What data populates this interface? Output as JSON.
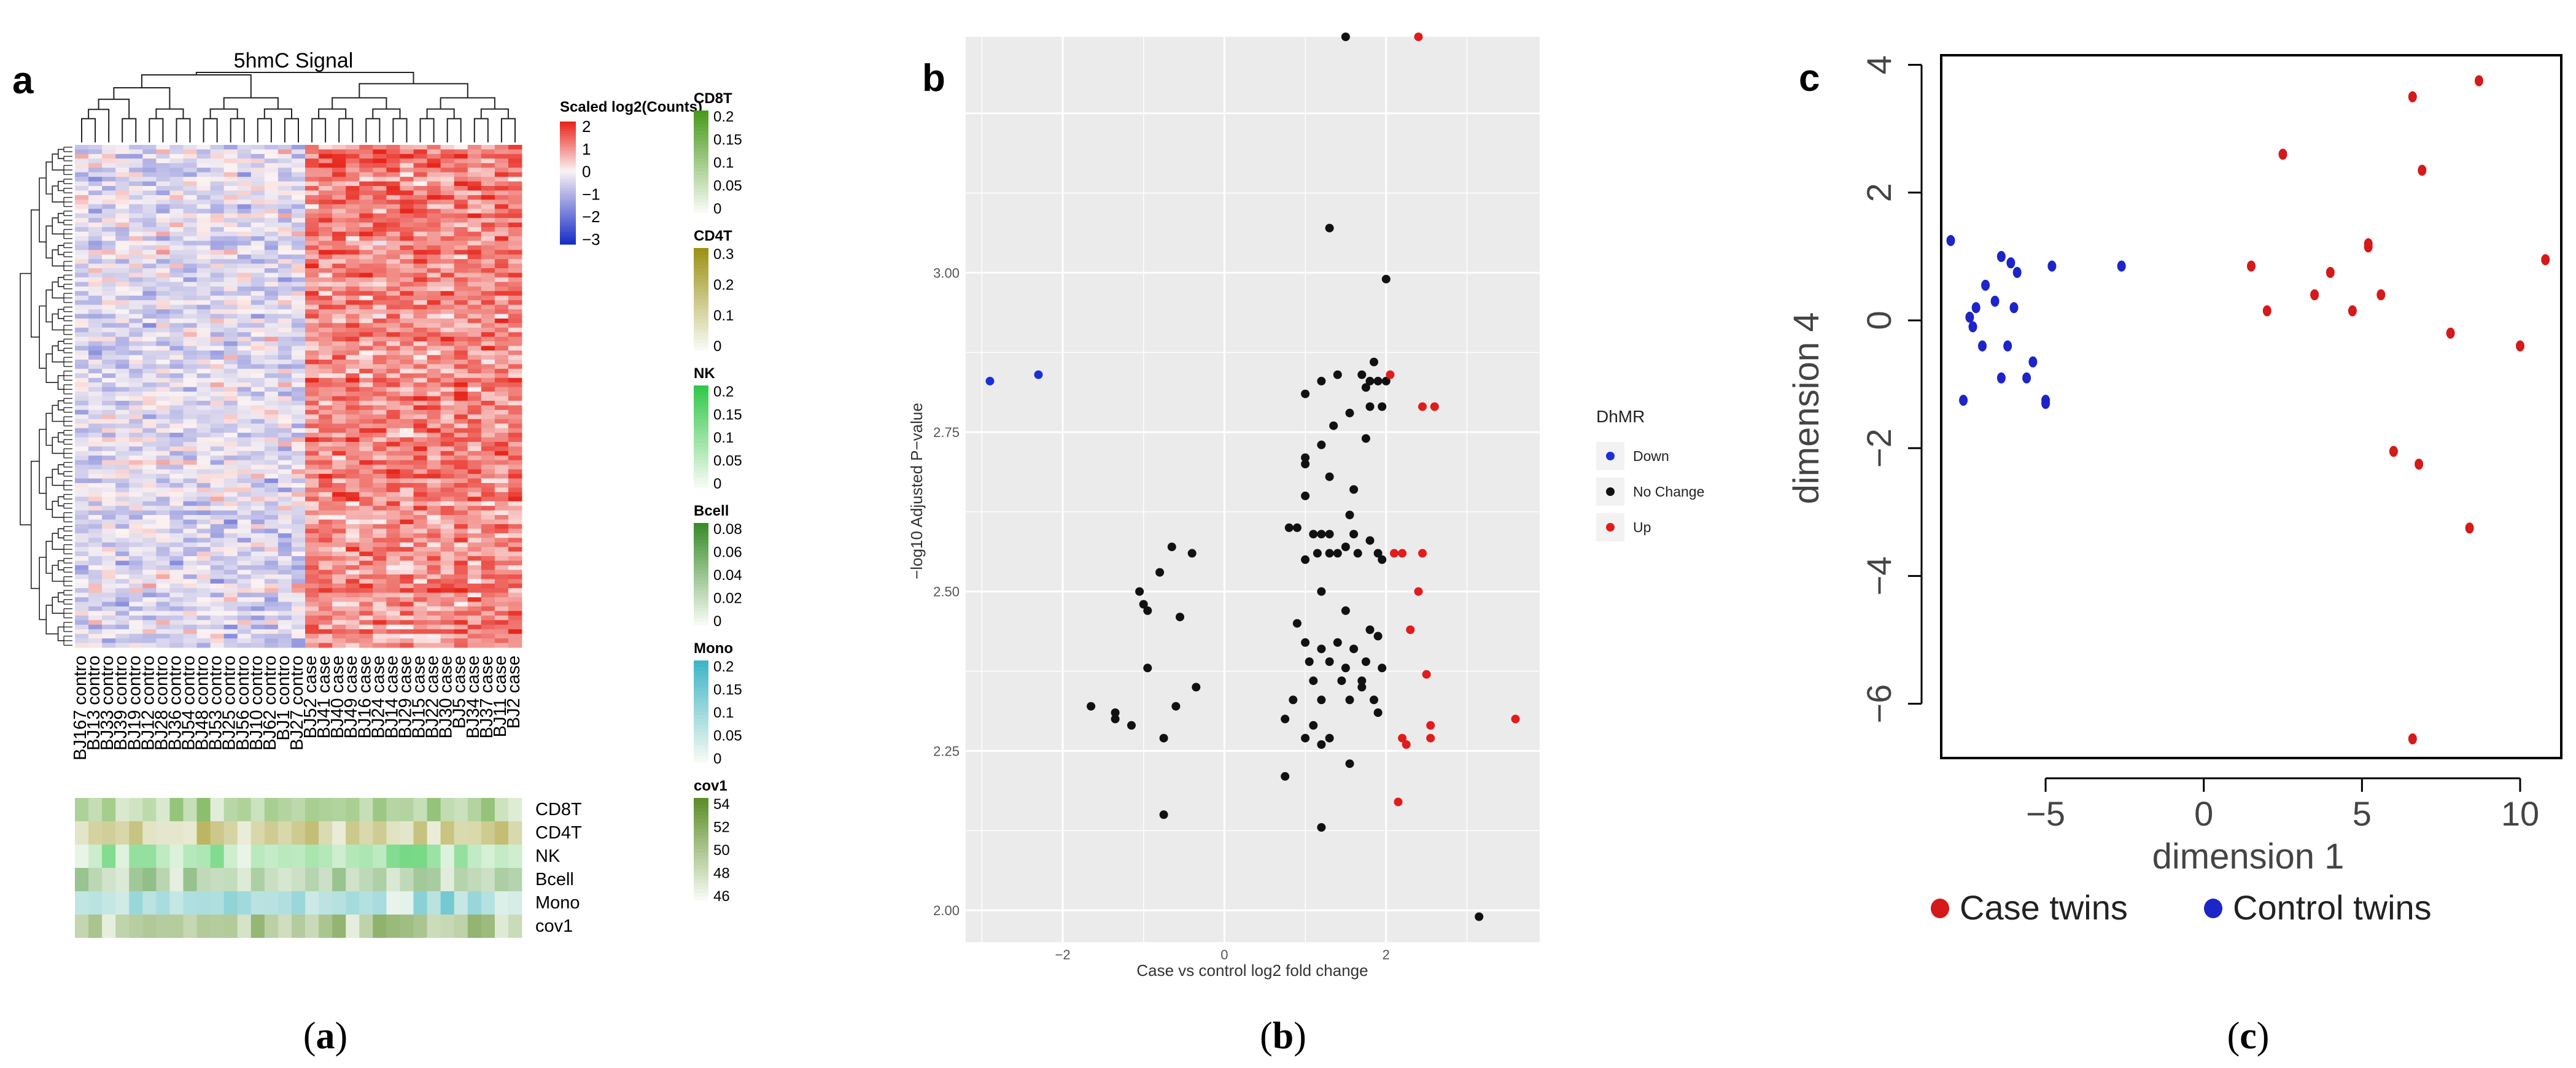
{
  "panel_letters": {
    "a": "a",
    "b": "b",
    "c": "c"
  },
  "captions": [
    {
      "open": "(",
      "letter": "a",
      "close": ")"
    },
    {
      "open": "(",
      "letter": "b",
      "close": ")"
    },
    {
      "open": "(",
      "letter": "c",
      "close": ")"
    }
  ],
  "chart_data": [
    {
      "type": "heatmap",
      "title": "5hmC Signal",
      "samples": [
        "BJ167 contro",
        "BJ13 contro",
        "BJ33 contro",
        "BJ39 contro",
        "BJ19 contro",
        "BJ12 contro",
        "BJ28 contro",
        "BJ36 contro",
        "BJ54 contro",
        "BJ48 contro",
        "BJ53 contro",
        "BJ25 contro",
        "BJ56 contro",
        "BJ10 contro",
        "BJ62 contro",
        "BJ1 contro",
        "BJ27 contro",
        "BJ52 case",
        "BJ41 case",
        "BJ40 case",
        "BJ49 case",
        "BJ16 case",
        "BJ24 case",
        "BJ14 case",
        "BJ29 case",
        "BJ15 case",
        "BJ22 case",
        "BJ30 case",
        "BJ5 case",
        "BJ34 case",
        "BJ37 case",
        "BJ11 case",
        "BJ2 case"
      ],
      "n_regions": 110,
      "color_scale": {
        "title": "Scaled log2(Counts)",
        "ticks": [
          "2",
          "1",
          "0",
          "−1",
          "−2",
          "−3"
        ],
        "low": "#1a2ec8",
        "mid": "#fbf3f3",
        "high": "#e8261c"
      },
      "annotation_legends": [
        {
          "name": "CD8T",
          "ticks": [
            "0.2",
            "0.15",
            "0.1",
            "0.05",
            "0"
          ],
          "color": "#4a9a1c"
        },
        {
          "name": "CD4T",
          "ticks": [
            "0.3",
            "0.2",
            "0.1",
            "0"
          ],
          "color": "#9e9216"
        },
        {
          "name": "NK",
          "ticks": [
            "0.2",
            "0.15",
            "0.1",
            "0.05",
            "0"
          ],
          "color": "#32c84a"
        },
        {
          "name": "Bcell",
          "ticks": [
            "0.08",
            "0.06",
            "0.04",
            "0.02",
            "0"
          ],
          "color": "#3a8c2a"
        },
        {
          "name": "Mono",
          "ticks": [
            "0.2",
            "0.15",
            "0.1",
            "0.05",
            "0"
          ],
          "color": "#3fb6c6"
        },
        {
          "name": "cov1",
          "ticks": [
            "54",
            "52",
            "50",
            "48",
            "46"
          ],
          "color": "#5c8e28"
        }
      ],
      "annotation_rows": [
        "CD8T",
        "CD4T",
        "NK",
        "Bcell",
        "Mono",
        "cov1"
      ]
    },
    {
      "type": "scatter",
      "xlabel": "Case vs control log2 fold change",
      "ylabel": "−log10 Adjusted P−value",
      "xlim": [
        -3.2,
        3.9
      ],
      "ylim": [
        1.95,
        3.37
      ],
      "xticks": [
        -2,
        0,
        2
      ],
      "xtick_labels": [
        "−2",
        "0",
        "2"
      ],
      "yticks": [
        2.0,
        2.25,
        2.5,
        2.75,
        3.0
      ],
      "ytick_labels": [
        "2.00",
        "2.25",
        "2.50",
        "2.75",
        "3.00"
      ],
      "legend": {
        "title": "DhMR",
        "entries": [
          {
            "label": "Down",
            "color": "#1b2fd8"
          },
          {
            "label": "No Change",
            "color": "#111111"
          },
          {
            "label": "Up",
            "color": "#e21b1b"
          }
        ]
      },
      "series": [
        {
          "name": "Down",
          "color": "#1b2fd8",
          "points": [
            [
              -2.9,
              2.83
            ],
            [
              -2.3,
              2.84
            ]
          ]
        },
        {
          "name": "No Change",
          "color": "#111111",
          "points": [
            [
              1.5,
              3.37
            ],
            [
              1.3,
              3.07
            ],
            [
              2.0,
              2.99
            ],
            [
              1.85,
              2.86
            ],
            [
              1.7,
              2.84
            ],
            [
              1.8,
              2.83
            ],
            [
              1.9,
              2.83
            ],
            [
              2.0,
              2.83
            ],
            [
              1.4,
              2.84
            ],
            [
              1.2,
              2.83
            ],
            [
              1.75,
              2.82
            ],
            [
              1.0,
              2.81
            ],
            [
              1.8,
              2.79
            ],
            [
              1.95,
              2.79
            ],
            [
              1.55,
              2.78
            ],
            [
              1.35,
              2.76
            ],
            [
              1.75,
              2.74
            ],
            [
              1.2,
              2.73
            ],
            [
              1.0,
              2.71
            ],
            [
              1.0,
              2.7
            ],
            [
              1.3,
              2.68
            ],
            [
              1.6,
              2.66
            ],
            [
              1.0,
              2.65
            ],
            [
              1.55,
              2.62
            ],
            [
              0.8,
              2.6
            ],
            [
              0.9,
              2.6
            ],
            [
              1.1,
              2.59
            ],
            [
              1.2,
              2.59
            ],
            [
              1.3,
              2.59
            ],
            [
              1.6,
              2.59
            ],
            [
              1.8,
              2.58
            ],
            [
              1.5,
              2.57
            ],
            [
              1.15,
              2.56
            ],
            [
              1.3,
              2.56
            ],
            [
              1.4,
              2.56
            ],
            [
              1.0,
              2.55
            ],
            [
              1.65,
              2.56
            ],
            [
              1.9,
              2.56
            ],
            [
              1.95,
              2.55
            ],
            [
              -0.65,
              2.57
            ],
            [
              -0.4,
              2.56
            ],
            [
              -0.8,
              2.53
            ],
            [
              -1.05,
              2.5
            ],
            [
              -1.0,
              2.48
            ],
            [
              -0.95,
              2.47
            ],
            [
              -0.55,
              2.46
            ],
            [
              1.2,
              2.5
            ],
            [
              1.5,
              2.47
            ],
            [
              1.8,
              2.44
            ],
            [
              0.9,
              2.45
            ],
            [
              1.0,
              2.42
            ],
            [
              1.2,
              2.41
            ],
            [
              1.4,
              2.42
            ],
            [
              1.6,
              2.41
            ],
            [
              1.9,
              2.43
            ],
            [
              1.05,
              2.39
            ],
            [
              1.3,
              2.39
            ],
            [
              1.5,
              2.38
            ],
            [
              1.75,
              2.39
            ],
            [
              1.95,
              2.38
            ],
            [
              1.1,
              2.36
            ],
            [
              1.45,
              2.36
            ],
            [
              1.7,
              2.36
            ],
            [
              -0.95,
              2.38
            ],
            [
              0.85,
              2.33
            ],
            [
              1.2,
              2.33
            ],
            [
              1.55,
              2.33
            ],
            [
              1.85,
              2.33
            ],
            [
              1.7,
              2.35
            ],
            [
              -0.35,
              2.35
            ],
            [
              -1.65,
              2.32
            ],
            [
              -1.35,
              2.31
            ],
            [
              -1.35,
              2.3
            ],
            [
              -1.15,
              2.29
            ],
            [
              -0.6,
              2.32
            ],
            [
              -0.75,
              2.27
            ],
            [
              0.75,
              2.3
            ],
            [
              1.1,
              2.29
            ],
            [
              1.0,
              2.27
            ],
            [
              1.3,
              2.27
            ],
            [
              1.9,
              2.31
            ],
            [
              1.55,
              2.23
            ],
            [
              1.2,
              2.26
            ],
            [
              0.75,
              2.21
            ],
            [
              -0.75,
              2.15
            ],
            [
              1.2,
              2.13
            ],
            [
              3.15,
              1.99
            ]
          ]
        },
        {
          "name": "Up",
          "color": "#e21b1b",
          "points": [
            [
              2.4,
              3.37
            ],
            [
              2.05,
              2.84
            ],
            [
              2.45,
              2.79
            ],
            [
              2.6,
              2.79
            ],
            [
              2.1,
              2.56
            ],
            [
              2.2,
              2.56
            ],
            [
              2.45,
              2.56
            ],
            [
              2.4,
              2.5
            ],
            [
              2.3,
              2.44
            ],
            [
              2.5,
              2.37
            ],
            [
              2.55,
              2.29
            ],
            [
              2.55,
              2.27
            ],
            [
              2.2,
              2.27
            ],
            [
              2.25,
              2.26
            ],
            [
              2.15,
              2.17
            ],
            [
              3.6,
              2.3
            ]
          ]
        }
      ]
    },
    {
      "type": "scatter",
      "xlabel": "dimension 1",
      "ylabel": "dimension 4",
      "xlim": [
        -8.3,
        11.3
      ],
      "ylim": [
        -6.85,
        4.15
      ],
      "xticks": [
        -5,
        0,
        5,
        10
      ],
      "xtick_labels": [
        "−5",
        "0",
        "5",
        "10"
      ],
      "yticks": [
        -6,
        -4,
        -2,
        0,
        2,
        4
      ],
      "ytick_labels": [
        "−6",
        "−4",
        "−2",
        "0",
        "2",
        "4"
      ],
      "legend": {
        "entries": [
          {
            "label": "Case twins",
            "color": "#d41a1a"
          },
          {
            "label": "Control twins",
            "color": "#1d24c8"
          }
        ]
      },
      "series": [
        {
          "name": "Case twins",
          "color": "#d41a1a",
          "points": [
            [
              8.7,
              3.75
            ],
            [
              6.6,
              3.5
            ],
            [
              6.9,
              2.35
            ],
            [
              2.5,
              2.6
            ],
            [
              1.5,
              0.85
            ],
            [
              2.0,
              0.15
            ],
            [
              3.5,
              0.4
            ],
            [
              4.0,
              0.75
            ],
            [
              4.7,
              0.15
            ],
            [
              5.2,
              1.15
            ],
            [
              5.2,
              1.2
            ],
            [
              5.6,
              0.4
            ],
            [
              7.8,
              -0.2
            ],
            [
              10.0,
              -0.4
            ],
            [
              10.8,
              0.95
            ],
            [
              6.0,
              -2.05
            ],
            [
              6.8,
              -2.25
            ],
            [
              8.4,
              -3.25
            ],
            [
              6.6,
              -6.55
            ]
          ]
        },
        {
          "name": "Control twins",
          "color": "#1d24c8",
          "points": [
            [
              -8.0,
              1.25
            ],
            [
              -6.4,
              1.0
            ],
            [
              -6.1,
              0.9
            ],
            [
              -5.9,
              0.75
            ],
            [
              -4.8,
              0.85
            ],
            [
              -2.6,
              0.85
            ],
            [
              -6.9,
              0.55
            ],
            [
              -7.2,
              0.2
            ],
            [
              -7.4,
              0.05
            ],
            [
              -6.6,
              0.3
            ],
            [
              -6.0,
              0.2
            ],
            [
              -6.2,
              -0.4
            ],
            [
              -7.0,
              -0.4
            ],
            [
              -5.4,
              -0.65
            ],
            [
              -5.6,
              -0.9
            ],
            [
              -6.4,
              -0.9
            ],
            [
              -5.0,
              -1.3
            ],
            [
              -5.0,
              -1.25
            ],
            [
              -7.6,
              -1.25
            ],
            [
              -7.3,
              -0.1
            ]
          ]
        }
      ]
    }
  ]
}
